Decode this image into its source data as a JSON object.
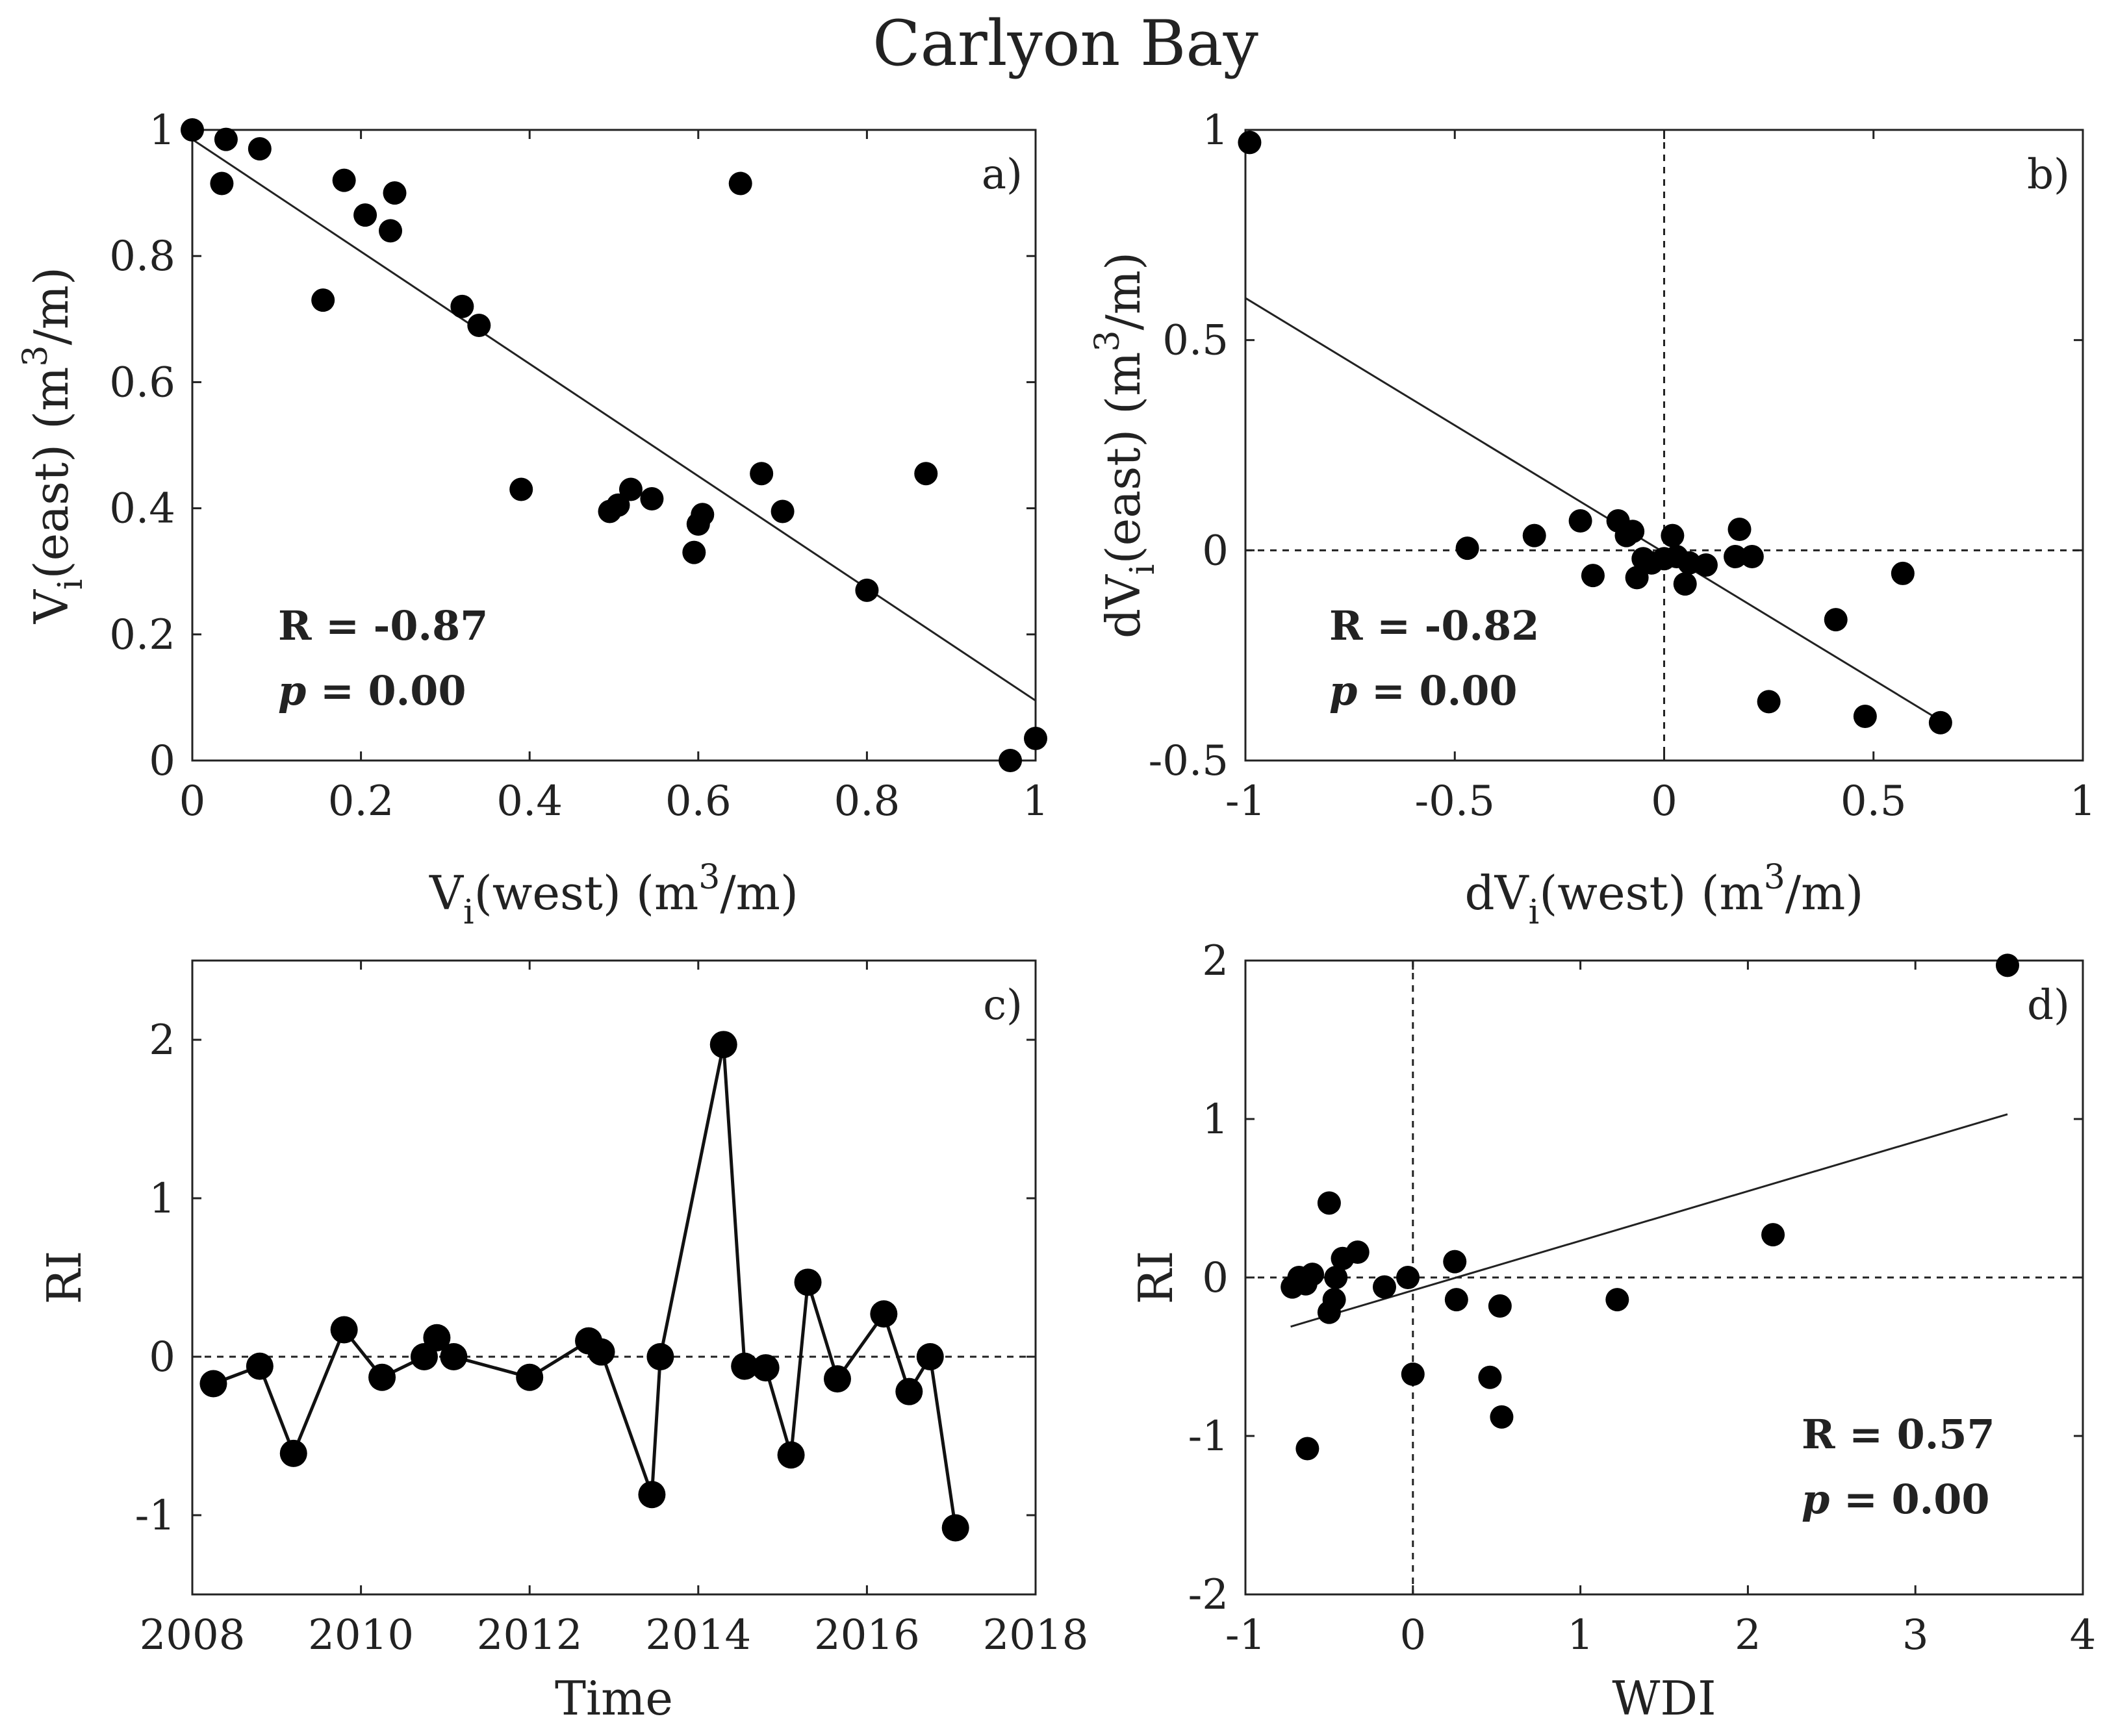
{
  "title": "Carlyon Bay",
  "chart_data": [
    {
      "panel": "a)",
      "type": "scatter",
      "xlabel": "V",
      "xlabel_sub": "i",
      "xlabel_rest": "(west) (m",
      "xlabel_sup": "3",
      "xlabel_end": "/m)",
      "ylabel": "V",
      "ylabel_sub": "i",
      "ylabel_rest": "(east) (m",
      "ylabel_sup": "3",
      "ylabel_end": "/m)",
      "xlim": [
        0,
        1
      ],
      "ylim": [
        0,
        1
      ],
      "xticks": [
        0,
        0.2,
        0.4,
        0.6,
        0.8,
        1
      ],
      "xtick_labels": [
        "0",
        "0.2",
        "0.4",
        "0.6",
        "0.8",
        "1"
      ],
      "yticks": [
        0,
        0.2,
        0.4,
        0.6,
        0.8,
        1
      ],
      "ytick_labels": [
        "0",
        "0.2",
        "0.4",
        "0.6",
        "0.8",
        "1"
      ],
      "points": [
        [
          0.0,
          1.0
        ],
        [
          0.04,
          0.985
        ],
        [
          0.08,
          0.97
        ],
        [
          0.035,
          0.915
        ],
        [
          0.18,
          0.92
        ],
        [
          0.24,
          0.9
        ],
        [
          0.205,
          0.865
        ],
        [
          0.235,
          0.84
        ],
        [
          0.155,
          0.73
        ],
        [
          0.32,
          0.72
        ],
        [
          0.34,
          0.69
        ],
        [
          0.65,
          0.915
        ],
        [
          0.39,
          0.43
        ],
        [
          0.495,
          0.395
        ],
        [
          0.505,
          0.405
        ],
        [
          0.52,
          0.43
        ],
        [
          0.545,
          0.415
        ],
        [
          0.6,
          0.375
        ],
        [
          0.605,
          0.39
        ],
        [
          0.595,
          0.33
        ],
        [
          0.675,
          0.455
        ],
        [
          0.7,
          0.395
        ],
        [
          0.87,
          0.455
        ],
        [
          0.8,
          0.27
        ],
        [
          0.97,
          0.0
        ],
        [
          1.0,
          0.035
        ]
      ],
      "fit_line": [
        [
          0,
          0.985
        ],
        [
          1,
          0.095
        ]
      ],
      "r_label": "R = -0.87",
      "p_symbol": "p",
      "p_value": " = 0.00"
    },
    {
      "panel": "b)",
      "type": "scatter",
      "xlabel": "dV",
      "xlabel_sub": "i",
      "xlabel_rest": "(west) (m",
      "xlabel_sup": "3",
      "xlabel_end": "/m)",
      "ylabel": "dV",
      "ylabel_sub": "i",
      "ylabel_rest": "(east) (m",
      "ylabel_sup": "3",
      "ylabel_end": "/m)",
      "xlim": [
        -1,
        1
      ],
      "ylim": [
        -0.5,
        1
      ],
      "xticks": [
        -1,
        -0.5,
        0,
        0.5,
        1
      ],
      "xtick_labels": [
        "-1",
        "-0.5",
        "0",
        "0.5",
        "1"
      ],
      "yticks": [
        -0.5,
        0,
        0.5,
        1
      ],
      "ytick_labels": [
        "-0.5",
        "0",
        "0.5",
        "1"
      ],
      "points": [
        [
          -0.99,
          0.97
        ],
        [
          -0.47,
          0.005
        ],
        [
          -0.31,
          0.035
        ],
        [
          -0.2,
          0.07
        ],
        [
          -0.17,
          -0.06
        ],
        [
          -0.11,
          0.07
        ],
        [
          -0.09,
          0.035
        ],
        [
          -0.075,
          0.045
        ],
        [
          -0.065,
          -0.065
        ],
        [
          -0.05,
          -0.02
        ],
        [
          -0.03,
          -0.03
        ],
        [
          0.0,
          -0.02
        ],
        [
          0.02,
          0.035
        ],
        [
          0.03,
          -0.015
        ],
        [
          0.05,
          -0.08
        ],
        [
          0.06,
          -0.03
        ],
        [
          0.1,
          -0.035
        ],
        [
          0.17,
          -0.015
        ],
        [
          0.18,
          0.05
        ],
        [
          0.21,
          -0.015
        ],
        [
          0.25,
          -0.36
        ],
        [
          0.41,
          -0.165
        ],
        [
          0.48,
          -0.395
        ],
        [
          0.57,
          -0.055
        ],
        [
          0.66,
          -0.41
        ]
      ],
      "fit_line": [
        [
          -1,
          0.6
        ],
        [
          0.66,
          -0.405
        ]
      ],
      "zero_lines": {
        "x": 0,
        "y": 0
      },
      "r_label": "R = -0.82",
      "p_symbol": "p",
      "p_value": " = 0.00"
    },
    {
      "panel": "c)",
      "type": "line",
      "xlabel": "Time",
      "ylabel": "RI",
      "xlim": [
        2008,
        2018
      ],
      "ylim": [
        -1.5,
        2.5
      ],
      "xticks": [
        2008,
        2010,
        2012,
        2014,
        2016,
        2018
      ],
      "xtick_labels": [
        "2008",
        "2010",
        "2012",
        "2014",
        "2016",
        "2018"
      ],
      "yticks": [
        -1,
        0,
        1,
        2
      ],
      "ytick_labels": [
        "-1",
        "0",
        "1",
        "2"
      ],
      "points": [
        [
          2008.25,
          -0.17
        ],
        [
          2008.8,
          -0.06
        ],
        [
          2009.2,
          -0.61
        ],
        [
          2009.8,
          0.17
        ],
        [
          2010.25,
          -0.13
        ],
        [
          2010.75,
          0.0
        ],
        [
          2010.9,
          0.12
        ],
        [
          2011.1,
          0.0
        ],
        [
          2012.0,
          -0.13
        ],
        [
          2012.7,
          0.1
        ],
        [
          2012.85,
          0.03
        ],
        [
          2013.45,
          -0.87
        ],
        [
          2013.55,
          0.0
        ],
        [
          2014.3,
          1.97
        ],
        [
          2014.55,
          -0.06
        ],
        [
          2014.8,
          -0.07
        ],
        [
          2015.1,
          -0.62
        ],
        [
          2015.3,
          0.47
        ],
        [
          2015.65,
          -0.14
        ],
        [
          2016.2,
          0.27
        ],
        [
          2016.5,
          -0.22
        ],
        [
          2016.75,
          0.0
        ],
        [
          2017.05,
          -1.08
        ]
      ],
      "zero_lines": {
        "y": 0
      }
    },
    {
      "panel": "d)",
      "type": "scatter",
      "xlabel": "WDI",
      "ylabel": "RI",
      "xlim": [
        -1,
        4
      ],
      "ylim": [
        -2,
        2
      ],
      "xticks": [
        -1,
        0,
        1,
        2,
        3,
        4
      ],
      "xtick_labels": [
        "-1",
        "0",
        "1",
        "2",
        "3",
        "4"
      ],
      "yticks": [
        -2,
        -1,
        0,
        1,
        2
      ],
      "ytick_labels": [
        "-2",
        "-1",
        "0",
        "1",
        "2"
      ],
      "points": [
        [
          -0.72,
          -0.06
        ],
        [
          -0.68,
          0.0
        ],
        [
          -0.64,
          -0.04
        ],
        [
          -0.6,
          0.02
        ],
        [
          -0.5,
          0.47
        ],
        [
          -0.5,
          -0.22
        ],
        [
          -0.47,
          -0.14
        ],
        [
          -0.46,
          0.0
        ],
        [
          -0.42,
          0.12
        ],
        [
          -0.33,
          0.16
        ],
        [
          -0.17,
          -0.06
        ],
        [
          -0.03,
          0.0
        ],
        [
          0.0,
          -0.61
        ],
        [
          0.25,
          0.1
        ],
        [
          0.26,
          -0.14
        ],
        [
          0.46,
          -0.63
        ],
        [
          0.52,
          -0.18
        ],
        [
          0.53,
          -0.88
        ],
        [
          -0.63,
          -1.08
        ],
        [
          1.22,
          -0.14
        ],
        [
          2.15,
          0.27
        ],
        [
          3.55,
          1.97
        ]
      ],
      "fit_line": [
        [
          -0.73,
          -0.31
        ],
        [
          3.55,
          1.03
        ]
      ],
      "zero_lines": {
        "x": 0,
        "y": 0
      },
      "r_label": "R = 0.57",
      "p_symbol": "p",
      "p_value": " = 0.00"
    }
  ]
}
